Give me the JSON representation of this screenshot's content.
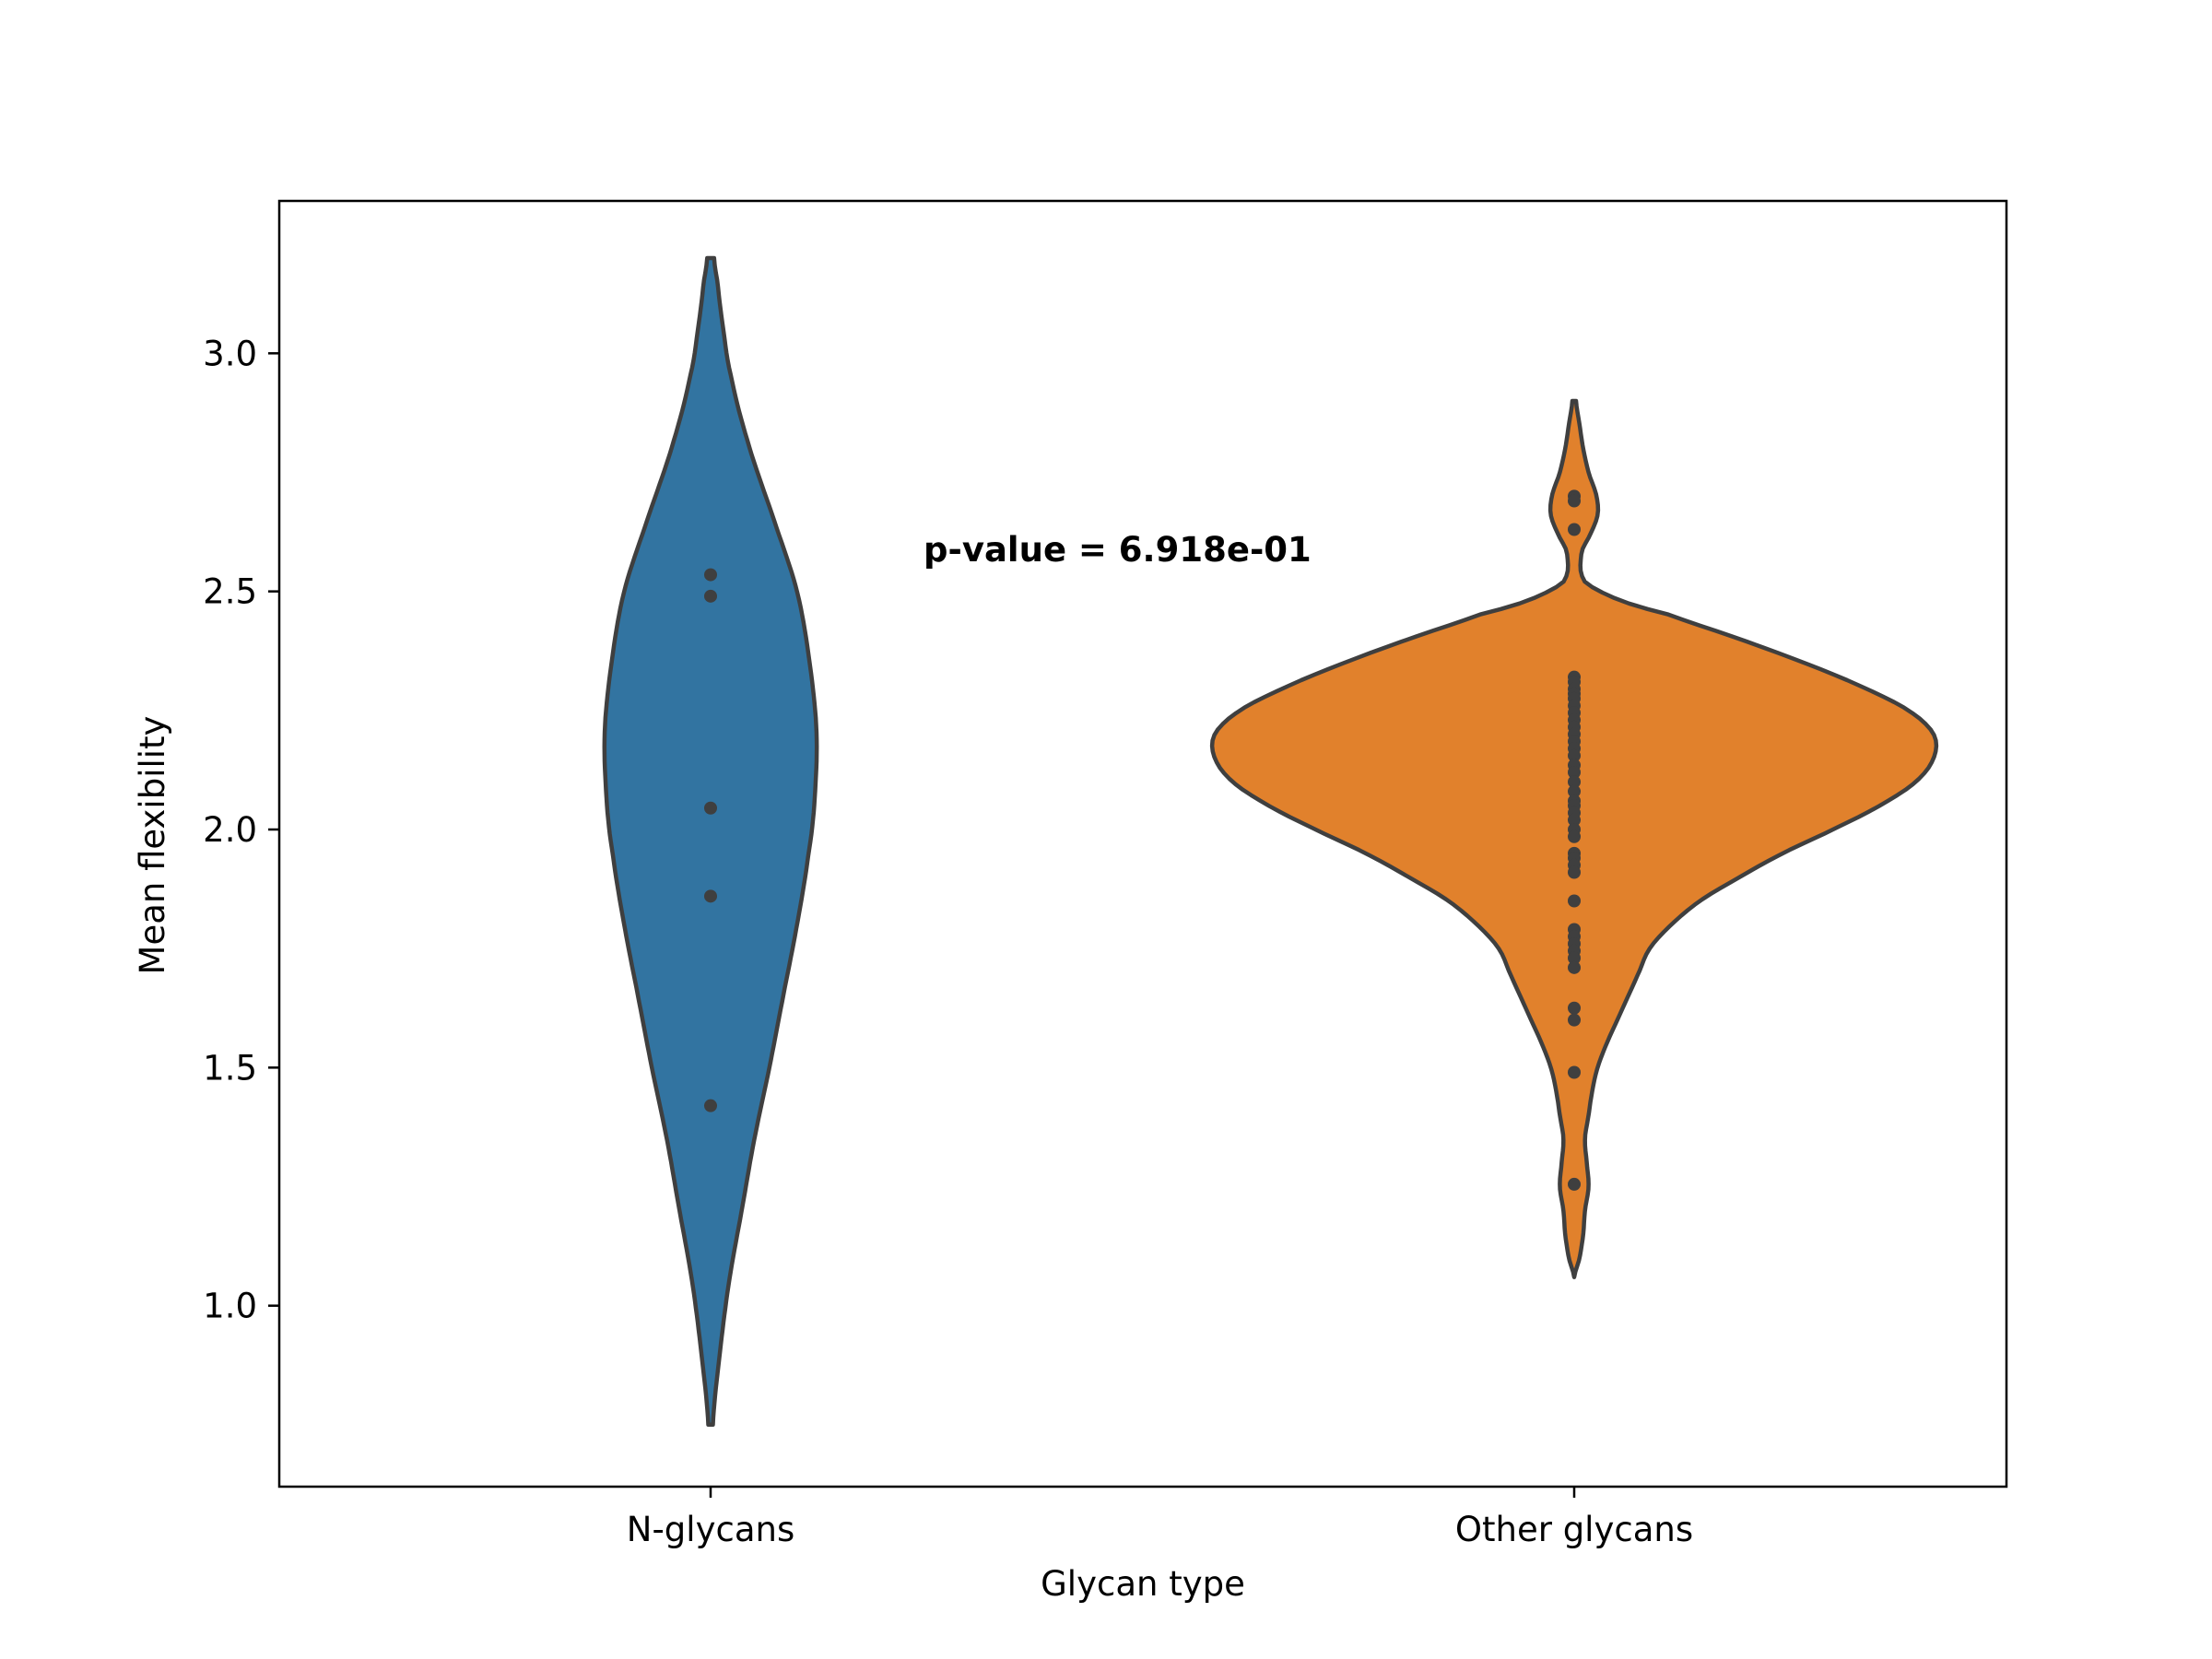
{
  "chart_data": {
    "type": "violin",
    "xlabel": "Glycan type",
    "ylabel": "Mean flexibility",
    "categories": [
      "N-glycans",
      "Other glycans"
    ],
    "ylim": [
      0.62,
      3.32
    ],
    "yticks": [
      1.0,
      1.5,
      2.0,
      2.5,
      3.0
    ],
    "ytick_labels": [
      "1.0",
      "1.5",
      "2.0",
      "2.5",
      "3.0"
    ],
    "grid": false,
    "annotation": "p-value = 6.918e-01",
    "series": [
      {
        "category": "N-glycans",
        "color": "#3274a1",
        "points": [
          2.535,
          2.49,
          2.045,
          1.86,
          1.42
        ],
        "range": [
          0.75,
          3.2
        ],
        "density": [
          [
            0.75,
            0.02
          ],
          [
            0.9,
            0.08
          ],
          [
            1.05,
            0.16
          ],
          [
            1.2,
            0.27
          ],
          [
            1.35,
            0.38
          ],
          [
            1.5,
            0.51
          ],
          [
            1.65,
            0.63
          ],
          [
            1.8,
            0.75
          ],
          [
            1.95,
            0.85
          ],
          [
            2.05,
            0.9
          ],
          [
            2.2,
            0.92
          ],
          [
            2.35,
            0.86
          ],
          [
            2.5,
            0.75
          ],
          [
            2.65,
            0.55
          ],
          [
            2.8,
            0.34
          ],
          [
            2.95,
            0.18
          ],
          [
            3.05,
            0.11
          ],
          [
            3.15,
            0.06
          ],
          [
            3.2,
            0.03
          ]
        ]
      },
      {
        "category": "Other glycans",
        "color": "#e1812c",
        "points": [
          2.7,
          2.69,
          2.63,
          2.32,
          2.31,
          2.295,
          2.285,
          2.275,
          2.26,
          2.245,
          2.23,
          2.215,
          2.2,
          2.185,
          2.17,
          2.155,
          2.135,
          2.12,
          2.1,
          2.08,
          2.06,
          2.05,
          2.035,
          2.02,
          2.0,
          1.985,
          1.95,
          1.94,
          1.925,
          1.91,
          1.85,
          1.79,
          1.775,
          1.76,
          1.745,
          1.73,
          1.71,
          1.625,
          1.6,
          1.49,
          1.255
        ],
        "range": [
          1.06,
          2.9
        ],
        "density": [
          [
            1.06,
            0.0
          ],
          [
            1.1,
            0.015
          ],
          [
            1.15,
            0.025
          ],
          [
            1.2,
            0.03
          ],
          [
            1.25,
            0.04
          ],
          [
            1.3,
            0.035
          ],
          [
            1.35,
            0.03
          ],
          [
            1.4,
            0.04
          ],
          [
            1.45,
            0.05
          ],
          [
            1.5,
            0.065
          ],
          [
            1.55,
            0.09
          ],
          [
            1.6,
            0.12
          ],
          [
            1.65,
            0.15
          ],
          [
            1.7,
            0.18
          ],
          [
            1.75,
            0.21
          ],
          [
            1.8,
            0.27
          ],
          [
            1.85,
            0.35
          ],
          [
            1.9,
            0.46
          ],
          [
            1.95,
            0.58
          ],
          [
            2.0,
            0.72
          ],
          [
            2.05,
            0.85
          ],
          [
            2.1,
            0.95
          ],
          [
            2.15,
            1.0
          ],
          [
            2.2,
            1.0
          ],
          [
            2.25,
            0.93
          ],
          [
            2.3,
            0.8
          ],
          [
            2.35,
            0.64
          ],
          [
            2.4,
            0.46
          ],
          [
            2.45,
            0.27
          ],
          [
            2.48,
            0.13
          ],
          [
            2.52,
            0.03
          ],
          [
            2.58,
            0.02
          ],
          [
            2.62,
            0.045
          ],
          [
            2.66,
            0.065
          ],
          [
            2.7,
            0.062
          ],
          [
            2.75,
            0.04
          ],
          [
            2.8,
            0.025
          ],
          [
            2.85,
            0.015
          ],
          [
            2.9,
            0.005
          ]
        ]
      }
    ]
  }
}
